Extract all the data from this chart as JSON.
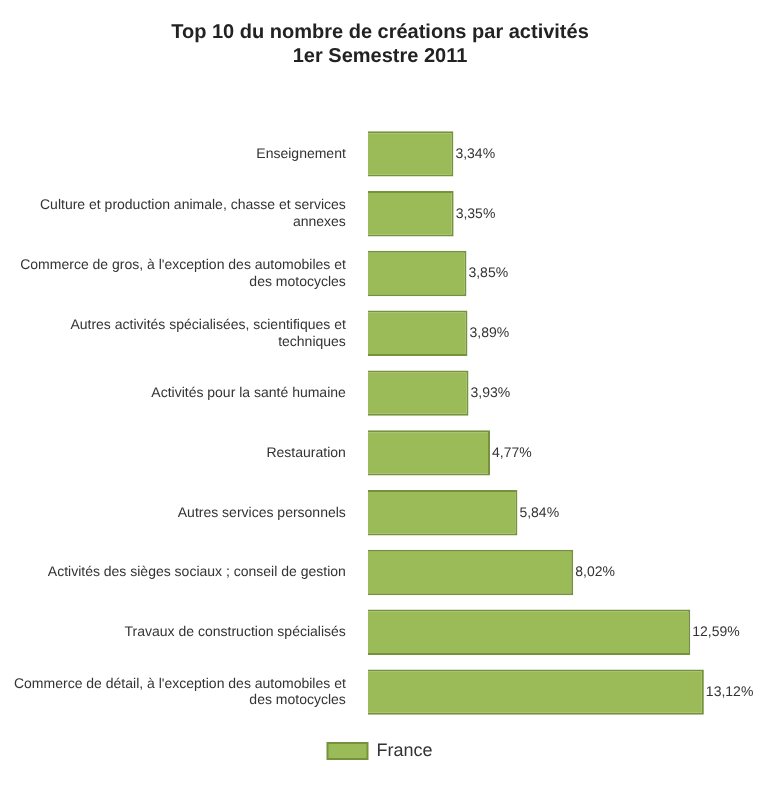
{
  "chart_data": {
    "type": "bar",
    "orientation": "horizontal",
    "title": "Top 10 du nombre de créations par activités\n1er Semestre 2011",
    "categories": [
      "Enseignement",
      "Culture et production animale, chasse et services annexes",
      "Commerce de gros, à l'exception des automobiles et des motocycles",
      "Autres activités spécialisées, scientifiques et techniques",
      "Activités pour la santé humaine",
      "Restauration",
      "Autres services personnels",
      "Activités des sièges sociaux ; conseil de gestion",
      "Travaux de construction spécialisés",
      "Commerce de détail, à l'exception des automobiles et des motocycles"
    ],
    "series": [
      {
        "name": "France",
        "color": "#9bbb59",
        "values": [
          3.34,
          3.35,
          3.85,
          3.89,
          3.93,
          4.77,
          5.84,
          8.02,
          12.59,
          13.12
        ],
        "value_labels": [
          "3,34%",
          "3,35%",
          "3,85%",
          "3,89%",
          "3,93%",
          "4,77%",
          "5,84%",
          "8,02%",
          "12,59%",
          "13,12%"
        ]
      }
    ],
    "grid": false,
    "legend": "bottom"
  }
}
